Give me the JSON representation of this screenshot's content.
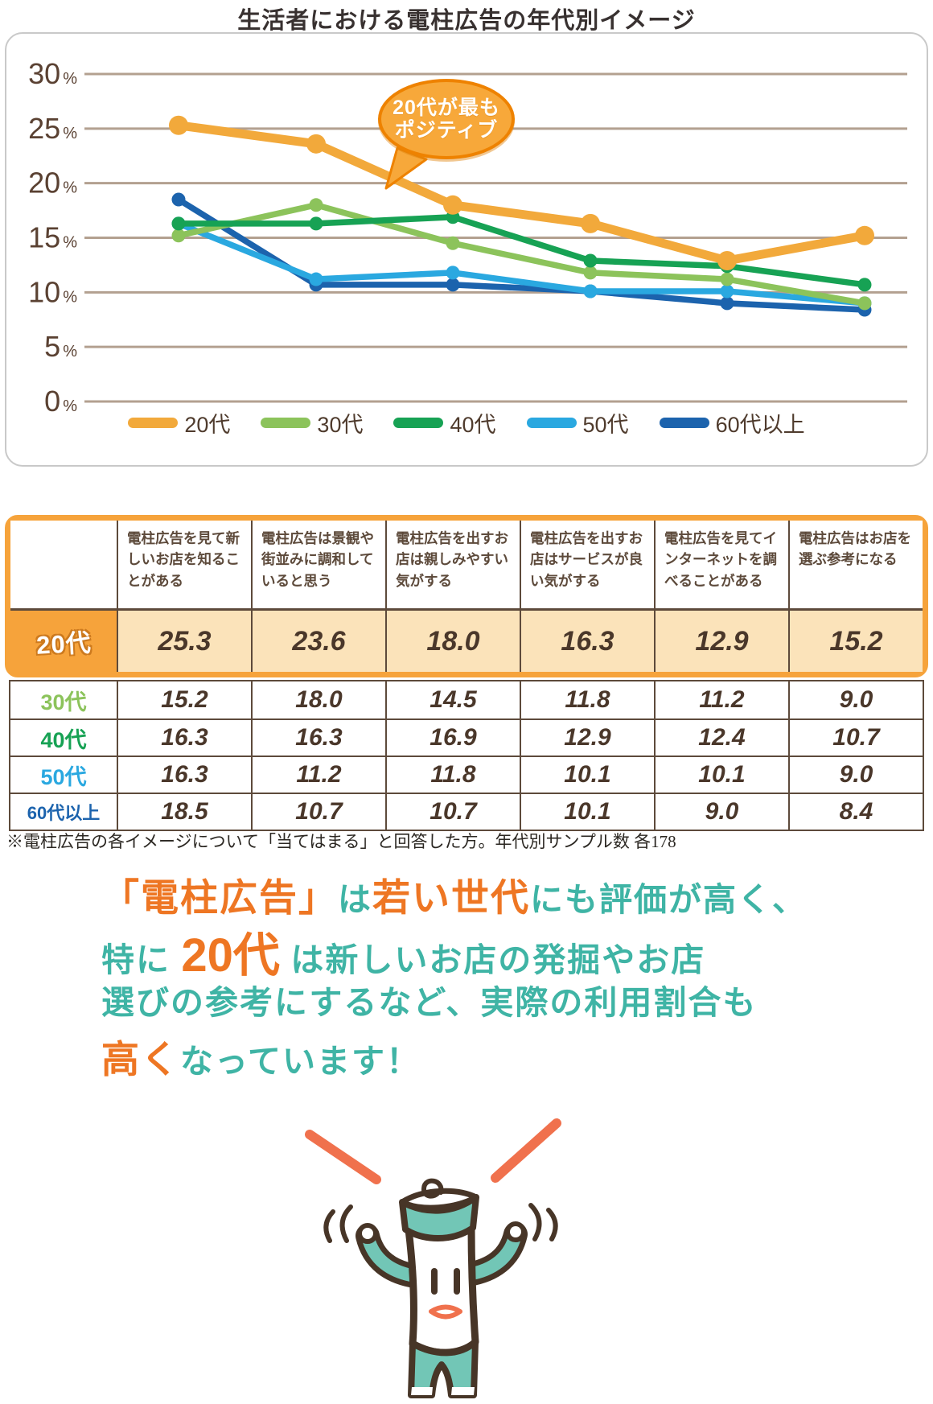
{
  "title": "生活者における電柱広告の年代別イメージ",
  "chart_data": {
    "type": "line",
    "title": "生活者における電柱広告の年代別イメージ",
    "categories": [
      "電柱広告を見て新しいお店を知ることがある",
      "電柱広告は景観や街並みに調和していると思う",
      "電柱広告を出すお店は親しみやすい気がする",
      "電柱広告を出すお店はサービスが良い気がする",
      "電柱広告を見てインターネットを調べることがある",
      "電柱広告はお店を選ぶ参考になる"
    ],
    "series": [
      {
        "name": "20代",
        "color": "#f2a93b",
        "values": [
          25.3,
          23.6,
          18.0,
          16.3,
          12.9,
          15.2
        ]
      },
      {
        "name": "30代",
        "color": "#8cc35b",
        "values": [
          15.2,
          18.0,
          14.5,
          11.8,
          11.2,
          9.0
        ]
      },
      {
        "name": "40代",
        "color": "#17a254",
        "values": [
          16.3,
          16.3,
          16.9,
          12.9,
          12.4,
          10.7
        ]
      },
      {
        "name": "50代",
        "color": "#2aa8e0",
        "values": [
          16.3,
          11.2,
          11.8,
          10.1,
          10.1,
          9.0
        ]
      },
      {
        "name": "60代以上",
        "color": "#1c63ad",
        "values": [
          18.5,
          10.7,
          10.7,
          10.1,
          9.0,
          8.4
        ]
      }
    ],
    "ylim": [
      0,
      30
    ],
    "ytick_step": 5,
    "ytick_suffix": "%",
    "grid": true,
    "legend_position": "bottom",
    "annotation_line1": "20代が最も",
    "annotation_line2": "ポジティブ"
  },
  "table": {
    "corner": "",
    "col_headers": [
      "電柱広告を見て新しいお店を知ることがある",
      "電柱広告は景観や街並みに調和していると思う",
      "電柱広告を出すお店は親しみやすい気がする",
      "電柱広告を出すお店はサービスが良い気がする",
      "電柱広告を見てインターネットを調べることがある",
      "電柱広告はお店を選ぶ参考になる"
    ],
    "rows": [
      {
        "label": "20代",
        "highlight": true,
        "color": "#f6a33b",
        "values": [
          "25.3",
          "23.6",
          "18.0",
          "16.3",
          "12.9",
          "15.2"
        ]
      },
      {
        "label": "30代",
        "highlight": false,
        "color": "#8cc35b",
        "values": [
          "15.2",
          "18.0",
          "14.5",
          "11.8",
          "11.2",
          "9.0"
        ]
      },
      {
        "label": "40代",
        "highlight": false,
        "color": "#17a254",
        "values": [
          "16.3",
          "16.3",
          "16.9",
          "12.9",
          "12.4",
          "10.7"
        ]
      },
      {
        "label": "50代",
        "highlight": false,
        "color": "#2aa8e0",
        "values": [
          "16.3",
          "11.2",
          "11.8",
          "10.1",
          "10.1",
          "9.0"
        ]
      },
      {
        "label": "60代以上",
        "highlight": false,
        "color": "#1c63ad",
        "values": [
          "18.5",
          "10.7",
          "10.7",
          "10.1",
          "9.0",
          "8.4"
        ]
      }
    ]
  },
  "footnote": "※電柱広告の各イメージについて「当てはまる」と回答した方。年代別サンプル数 各178",
  "message": {
    "emphasis_color": "#ee7623",
    "base_color": "#3fb4a5",
    "lines": [
      [
        {
          "text": "「電柱広告」",
          "emphasis": true,
          "xlarge": false
        },
        {
          "text": "は",
          "emphasis": false,
          "xlarge": false
        },
        {
          "text": "若い世代",
          "emphasis": true,
          "xlarge": false
        },
        {
          "text": "にも評価が高く、",
          "emphasis": false,
          "xlarge": false
        }
      ],
      [
        {
          "text": "特に ",
          "emphasis": false,
          "xlarge": false
        },
        {
          "text": "20代",
          "emphasis": true,
          "xlarge": true
        },
        {
          "text": " は新しいお店の発掘やお店",
          "emphasis": false,
          "xlarge": false
        }
      ],
      [
        {
          "text": "選びの参考にするなど、実際の利用割合も",
          "emphasis": false,
          "xlarge": false
        }
      ],
      [
        {
          "text": "高く",
          "emphasis": true,
          "xlarge": false
        },
        {
          "text": "なっています！",
          "emphasis": false,
          "xlarge": false
        }
      ]
    ]
  },
  "mascot": {
    "icon": "utility-pole-mascot",
    "excitement_marks": "orange-lines"
  },
  "colors": {
    "grid_line": "#b3a090",
    "axis_text": "#5a4132",
    "table_line": "#5d4a3b",
    "highlight_border": "#f6a33b",
    "highlight_cell_bg": "#fbe3ba",
    "bubble_fill": "#f7a83a",
    "bubble_stroke": "#ee8200",
    "panel_border": "#c9c9c9"
  }
}
